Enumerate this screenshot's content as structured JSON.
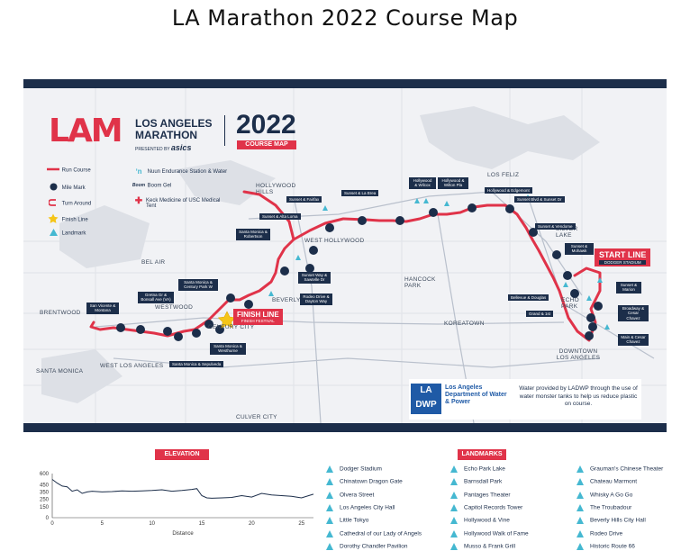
{
  "page": {
    "title": "LA Marathon 2022 Course Map"
  },
  "logo": {
    "letters": "LAM",
    "name_line1": "LOS ANGELES",
    "name_line2": "MARATHON",
    "presented_by": "PRESENTED BY",
    "sponsor": "asics",
    "year": "2022",
    "course_map": "COURSE MAP"
  },
  "legend": {
    "items": [
      {
        "label": "Run Course",
        "icon": "run-course-line-icon"
      },
      {
        "label": "Mile Mark",
        "icon": "mile-mark-icon"
      },
      {
        "label": "Turn Around",
        "icon": "turn-around-icon"
      },
      {
        "label": "Finish Line",
        "icon": "star-icon"
      },
      {
        "label": "Landmark",
        "icon": "landmark-triangle-icon"
      },
      {
        "label": "Nuun Endurance Station & Water",
        "icon": "water-station-icon"
      },
      {
        "label": "Boom Gel",
        "icon": "gel-icon"
      },
      {
        "label": "Keck Medicine of USC Medical Tent",
        "icon": "medical-cross-icon"
      }
    ]
  },
  "areas": [
    "HOLLYWOOD HILLS",
    "LOS FELIZ",
    "WEST HOLLYWOOD",
    "BEL AIR",
    "SILVER LAKE",
    "ECHO PARK",
    "HANCOCK PARK",
    "BEVERLY HILLS",
    "BRENTWOOD",
    "WESTWOOD",
    "CENTURY CITY",
    "KOREATOWN",
    "WEST LOS ANGELES",
    "SANTA MONICA",
    "DOWNTOWN LOS ANGELES",
    "CULVER CITY"
  ],
  "start_line": {
    "label": "START LINE",
    "sub": "DODGER STADIUM"
  },
  "finish_line": {
    "label": "FINISH LINE",
    "sub": "FINISH FESTIVAL"
  },
  "callouts": [
    "Sunset & Fairfax",
    "Sunset & La Brea",
    "Hollywood & Wilcox",
    "Hollywood & Wilton Pla",
    "Hollywood & Edgemont",
    "Sunset Blvd & Sunset Dr",
    "Sunset & Vendome",
    "Sunset & Mohawk",
    "Sunset & Alta Loma",
    "Santa Monica & Robertson",
    "Sunset Way & Sawtelle Dr",
    "Rodeo Drive & Dayton Way",
    "Santa Monica & Century Park W",
    "Bellevue & Douglas",
    "Grand & 1st",
    "Sunset & Marion",
    "Broadway & Cesar Chavez",
    "Main & Cesar Chavez",
    "San Vicente & Montana",
    "Gretna Gr & Bonsall Ave (VA)",
    "Santa Monica & Westhurne",
    "Santa Monica & Sepulveda"
  ],
  "water_partner": {
    "logo": "LA DWP",
    "name": "Los Angeles Department of Water & Power",
    "text": "Water provided by LADWP through the use of water monster tanks to help us reduce plastic on course."
  },
  "elevation": {
    "title": "ELEVATION",
    "xlabel": "Distance"
  },
  "landmarks": {
    "title": "LANDMARKS",
    "items": [
      "Dodger Stadium",
      "Chinatown Dragon Gate",
      "Olvera Street",
      "Los Angeles City Hall",
      "Little Tokyo",
      "Cathedral of our Lady of Angels",
      "Dorothy Chandler Pavilion",
      "Echo Park Lake",
      "Barnsdall Park",
      "Pantages Theater",
      "Capitol Records Tower",
      "Hollywood & Vine",
      "Hollywood Walk of Fame",
      "Musso & Frank Grill",
      "Grauman's Chinese Theater",
      "Chateau Marmont",
      "Whisky A Go Go",
      "The Troubadour",
      "Beverly Hills City Hall",
      "Rodeo Drive",
      "Historic Route 66"
    ]
  },
  "chart_data": {
    "type": "line",
    "title": "ELEVATION",
    "xlabel": "Distance",
    "ylabel": "",
    "xlim": [
      0,
      26.2
    ],
    "ylim": [
      0,
      600
    ],
    "xticks": [
      0,
      5,
      10,
      15,
      20,
      25
    ],
    "yticks": [
      0,
      150,
      250,
      350,
      450,
      600
    ],
    "x": [
      0,
      0.5,
      1,
      1.5,
      2,
      2.5,
      3,
      3.5,
      4,
      5,
      6,
      7,
      8,
      9,
      10,
      11,
      12,
      13,
      14,
      14.5,
      15,
      15.5,
      16,
      17,
      18,
      19,
      20,
      21,
      22,
      23,
      24,
      25,
      26.2
    ],
    "y": [
      520,
      470,
      430,
      420,
      360,
      380,
      330,
      350,
      360,
      350,
      355,
      365,
      360,
      365,
      370,
      380,
      360,
      370,
      385,
      395,
      300,
      270,
      265,
      270,
      275,
      300,
      280,
      330,
      310,
      300,
      290,
      270,
      320
    ]
  },
  "colors": {
    "navy": "#1c2e4a",
    "red": "#e03349",
    "cyan": "#45b8d1",
    "map": "#f1f2f5"
  }
}
